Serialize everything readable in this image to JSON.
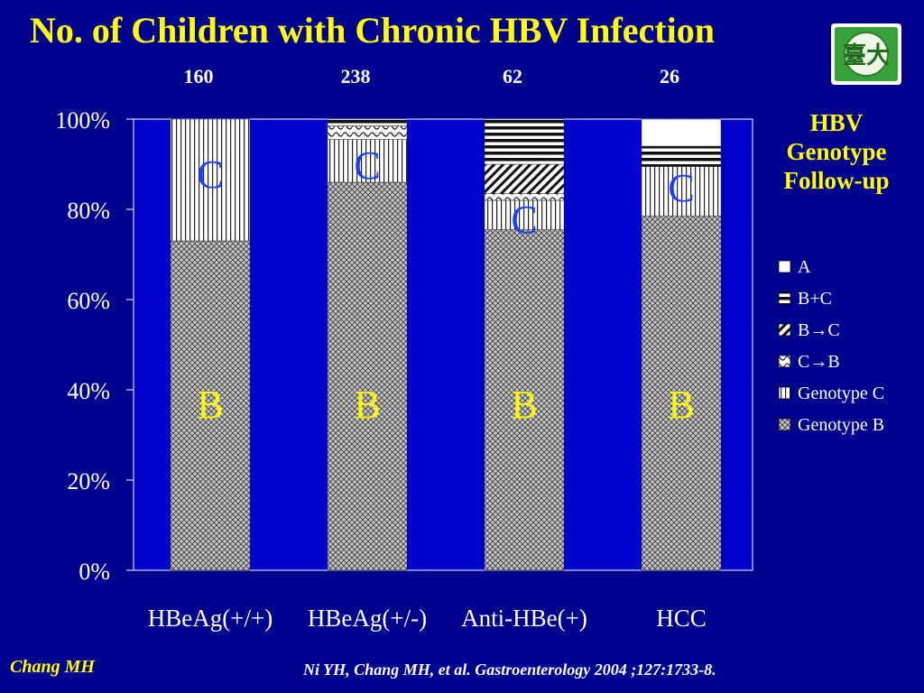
{
  "slide": {
    "title": "No. of Children with Chronic HBV Infection",
    "legend_title": [
      "HBV",
      "Genotype",
      "Follow-up"
    ],
    "author": "Chang MH",
    "citation": "Ni YH, Chang MH, et al.  Gastroenterology 2004 ;127:1733-8.",
    "logo_text": "臺大",
    "colors": {
      "background": "#00008f",
      "title": "#ffff00",
      "label_B": "#ffff00",
      "label_C": "#1c3cff",
      "plot_area": "#0000cc"
    }
  },
  "chart_data": {
    "type": "bar",
    "stacked": "percent",
    "categories": [
      "HBeAg(+/+)",
      "HBeAg(+/-)",
      "Anti-HBe(+)",
      "HCC"
    ],
    "counts": [
      "160",
      "238",
      "62",
      "26"
    ],
    "y_ticks": [
      "0%",
      "20%",
      "40%",
      "60%",
      "80%",
      "100%"
    ],
    "ylim": [
      0,
      100
    ],
    "series": [
      {
        "name": "Genotype B",
        "pattern": "crosshatch",
        "values": [
          73,
          86,
          75.5,
          78.5
        ]
      },
      {
        "name": "Genotype C",
        "pattern": "vertical",
        "values": [
          27,
          9.5,
          6.5,
          11
        ]
      },
      {
        "name": "C→B",
        "pattern": "wave",
        "values": [
          0,
          3,
          1.5,
          0
        ]
      },
      {
        "name": "B→C",
        "pattern": "diagonal",
        "values": [
          0,
          0,
          6.5,
          0
        ]
      },
      {
        "name": "B+C",
        "pattern": "horizontal",
        "values": [
          0,
          1.5,
          10,
          4.5
        ]
      },
      {
        "name": "A",
        "pattern": "white",
        "values": [
          0,
          0,
          0,
          6
        ]
      }
    ],
    "legend": [
      "A",
      "B+C",
      "B→C",
      "C→B",
      "Genotype C",
      "Genotype B"
    ],
    "bar_annotations": [
      {
        "bar": 0,
        "text": "C",
        "at": 88,
        "color": "#1c3cff"
      },
      {
        "bar": 1,
        "text": "C",
        "at": 90,
        "color": "#1c3cff"
      },
      {
        "bar": 2,
        "text": "C",
        "at": 78,
        "color": "#1c3cff"
      },
      {
        "bar": 3,
        "text": "C",
        "at": 85,
        "color": "#1c3cff"
      },
      {
        "bar": 0,
        "text": "B",
        "at": 37,
        "color": "#ffff00"
      },
      {
        "bar": 1,
        "text": "B",
        "at": 37,
        "color": "#ffff00"
      },
      {
        "bar": 2,
        "text": "B",
        "at": 37,
        "color": "#ffff00"
      },
      {
        "bar": 3,
        "text": "B",
        "at": 37,
        "color": "#ffff00"
      }
    ],
    "legend_position": "right",
    "grid": false
  }
}
